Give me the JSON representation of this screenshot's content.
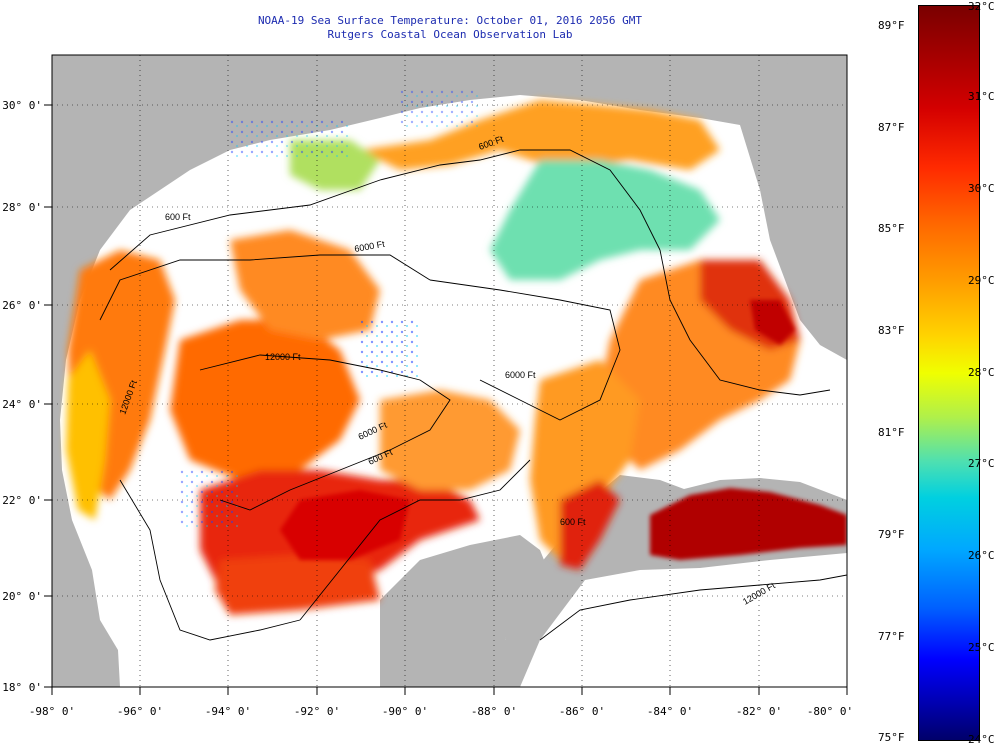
{
  "header": {
    "title_line1": "NOAA-19 Sea Surface Temperature:  October 01, 2016 2056 GMT",
    "title_line2": "Rutgers Coastal Ocean Observation Lab"
  },
  "map": {
    "lon_labels": [
      "-98° 0'",
      "-96° 0'",
      "-94° 0'",
      "-92° 0'",
      "-90° 0'",
      "-88° 0'",
      "-86° 0'",
      "-84° 0'",
      "-82° 0'",
      "-80° 0'"
    ],
    "lat_labels": [
      "30° 0'",
      "28° 0'",
      "26° 0'",
      "24° 0'",
      "22° 0'",
      "20° 0'",
      "18° 0'"
    ],
    "contour_labels": [
      "600 Ft",
      "6000 Ft",
      "12000 Ft",
      "600 Ft",
      "12000 Ft",
      "6000 Ft",
      "600 Ft",
      "6000 Ft",
      "600 Ft",
      "12000 Ft"
    ],
    "colors": {
      "land": "#b4b4b4",
      "no_data": "#ffffff",
      "frame": "#000000"
    }
  },
  "colorbar": {
    "fahrenheit": [
      "89°F",
      "87°F",
      "85°F",
      "83°F",
      "81°F",
      "79°F",
      "77°F",
      "75°F"
    ],
    "celsius": [
      "32°C",
      "31°C",
      "30°C",
      "29°C",
      "28°C",
      "27°C",
      "26°C",
      "25°C",
      "24°C"
    ]
  }
}
